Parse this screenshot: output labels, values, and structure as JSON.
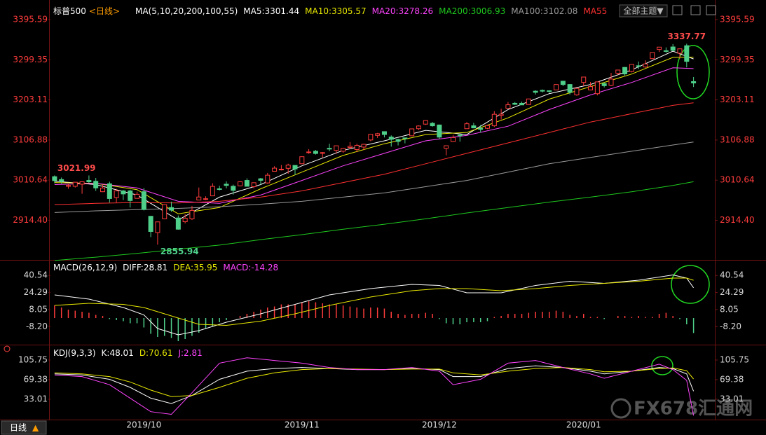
{
  "header": {
    "symbol": "标普500",
    "period": "<日线>",
    "theme_button": "全部主题▼",
    "bottom_tab": "日线",
    "bottom_tab_arrow": "▲",
    "watermark": "FX678汇通网"
  },
  "chart_data": [
    {
      "type": "candlestick",
      "indicator": "MA(5,10,20,200,100,55)",
      "up_color": "#ff3c3c",
      "down_color": "#4fd08a",
      "tick_color": "#ff3c3c",
      "xlim": [
        -0.6,
        96.1
      ],
      "ylim": [
        2821.2,
        3442.6
      ],
      "yticks": [
        3395.59,
        3299.35,
        3203.11,
        3106.88,
        3010.64,
        {
          "value": 2914.4,
          "label": "2914.40"
        }
      ],
      "categories": [
        null,
        null,
        null,
        null,
        null,
        null,
        null,
        null,
        null,
        null,
        null,
        null,
        null,
        "2019/10",
        null,
        null,
        null,
        null,
        null,
        null,
        null,
        null,
        null,
        null,
        null,
        null,
        null,
        null,
        null,
        null,
        null,
        null,
        null,
        null,
        null,
        null,
        "2019/11",
        null,
        null,
        null,
        null,
        null,
        null,
        null,
        null,
        null,
        null,
        null,
        null,
        null,
        null,
        null,
        null,
        null,
        null,
        null,
        "2019/12",
        null,
        null,
        null,
        null,
        null,
        null,
        null,
        null,
        null,
        null,
        null,
        null,
        null,
        null,
        null,
        null,
        null,
        null,
        null,
        null,
        "2020/01",
        null,
        null,
        null,
        null,
        null,
        null,
        null,
        null,
        null,
        null,
        null,
        null,
        null,
        null,
        null,
        null
      ],
      "candles": [
        [
          3019,
          3021.99,
          3003,
          3009.57
        ],
        [
          3012,
          3017,
          3002,
          3007.39
        ],
        [
          2996,
          3002,
          2990,
          2997.96
        ],
        [
          2996,
          3006,
          2993,
          3005.7
        ],
        [
          3001,
          3008,
          2978,
          3006.73
        ],
        [
          3010,
          3022,
          3004,
          3006.79
        ],
        [
          3008,
          3016,
          2985,
          2992.07
        ],
        [
          2983,
          2999,
          2982,
          2991.78
        ],
        [
          3002,
          3007,
          2957,
          2966.6
        ],
        [
          2969,
          2990,
          2957,
          2984.87
        ],
        [
          2985,
          2987,
          2963,
          2977.62
        ],
        [
          2985,
          2988,
          2945,
          2961.79
        ],
        [
          2967,
          2983,
          2967,
          2976.74
        ],
        [
          2983,
          2992,
          2938,
          2940.25
        ],
        [
          2924,
          2925,
          2874,
          2887.61
        ],
        [
          2885,
          2911,
          2855.94,
          2910.63
        ],
        [
          2918,
          2953,
          2918,
          2952.01
        ],
        [
          2945,
          2959,
          2935,
          2938.79
        ],
        [
          2920,
          2926,
          2892,
          2893.06
        ],
        [
          2911,
          2929,
          2907,
          2919.4
        ],
        [
          2918,
          2949,
          2915,
          2938.13
        ],
        [
          2963,
          2993,
          2963,
          2970.27
        ],
        [
          2965,
          2972,
          2963,
          2966.15
        ],
        [
          2973,
          3003,
          2973,
          2995.68
        ],
        [
          2990,
          2997,
          2986,
          2989.69
        ],
        [
          3001,
          3008,
          2991,
          2997.95
        ],
        [
          2996,
          3000,
          2976,
          2986.2
        ],
        [
          2997,
          3008,
          2996,
          3006.72
        ],
        [
          3010,
          3015,
          2995,
          2995.99
        ],
        [
          2995,
          3005,
          2991,
          3004.52
        ],
        [
          3014,
          3016,
          3000,
          3010.29
        ],
        [
          3004,
          3028,
          3002,
          3022.55
        ],
        [
          3032,
          3044,
          3032,
          3039.42
        ],
        [
          3036,
          3047,
          3034,
          3036.89
        ],
        [
          3039,
          3050,
          3026,
          3046.77
        ],
        [
          3046,
          3046,
          3023,
          3037.56
        ],
        [
          3050,
          3066.95,
          3050,
          3066.91
        ],
        [
          3078,
          3085,
          3074,
          3078.27
        ],
        [
          3080,
          3083,
          3072,
          3074.62
        ],
        [
          3075,
          3078,
          3065,
          3076.78
        ],
        [
          3087,
          3098,
          3080,
          3085.18
        ],
        [
          3082,
          3093.09,
          3074,
          3093.08
        ],
        [
          3080,
          3088,
          3076,
          3087.01
        ],
        [
          3089,
          3102,
          3085,
          3091.84
        ],
        [
          3084,
          3098,
          3078,
          3094.04
        ],
        [
          3090,
          3098,
          3083,
          3096.63
        ],
        [
          3107,
          3120.46,
          3104,
          3120.46
        ],
        [
          3118,
          3124,
          3112,
          3122.03
        ],
        [
          3127,
          3127.6,
          3113,
          3120.18
        ],
        [
          3114,
          3118,
          3091,
          3108.46
        ],
        [
          3108,
          3110,
          3094,
          3103.54
        ],
        [
          3112,
          3112,
          3099,
          3110.29
        ],
        [
          3117,
          3133.8,
          3117,
          3133.64
        ],
        [
          3134,
          3142,
          3131,
          3140.52
        ],
        [
          3145,
          3154,
          3143,
          3153.63
        ],
        [
          3147,
          3150,
          3139,
          3140.98
        ],
        [
          3143,
          3144,
          3110,
          3113.87
        ],
        [
          3087,
          3094,
          3070,
          3093.2
        ],
        [
          3103,
          3119,
          3102,
          3112.76
        ],
        [
          3119,
          3120,
          3103,
          3117.43
        ],
        [
          3134,
          3150,
          3134,
          3145.91
        ],
        [
          3141,
          3148,
          3135,
          3135.96
        ],
        [
          3135,
          3143,
          3125,
          3132.52
        ],
        [
          3135,
          3143,
          3133,
          3141.63
        ],
        [
          3141,
          3176,
          3138,
          3168.57
        ],
        [
          3166,
          3182,
          3156,
          3168.8
        ],
        [
          3183,
          3198,
          3183,
          3191.45
        ],
        [
          3195,
          3198,
          3191,
          3192.52
        ],
        [
          3195,
          3199,
          3191,
          3191.14
        ],
        [
          3192,
          3206,
          3192,
          3205.37
        ],
        [
          3224,
          3226,
          3216,
          3221.22
        ],
        [
          3226,
          3228,
          3221,
          3224.01
        ],
        [
          3225,
          3226,
          3220,
          3223.38
        ],
        [
          3227,
          3240,
          3227,
          3239.91
        ],
        [
          3248,
          3248,
          3236,
          3240.02
        ],
        [
          3240,
          3241,
          3216,
          3221.29
        ],
        [
          3215,
          3231,
          3213,
          3230.78
        ],
        [
          3245,
          3258,
          3236,
          3257.85
        ],
        [
          3227,
          3246,
          3226,
          3234.85
        ],
        [
          3218,
          3247,
          3214,
          3246.28
        ],
        [
          3242,
          3245,
          3233,
          3237.18
        ],
        [
          3238,
          3268,
          3236,
          3253.05
        ],
        [
          3267,
          3275,
          3263,
          3274.7
        ],
        [
          3281,
          3282,
          3261,
          3265.35
        ],
        [
          3271,
          3288,
          3269,
          3288.13
        ],
        [
          3285,
          3295,
          3277,
          3283.15
        ],
        [
          3282,
          3298,
          3280,
          3289.29
        ],
        [
          3302,
          3317,
          3302,
          3316.81
        ],
        [
          3324,
          3329.9,
          3318,
          3329.62
        ],
        [
          3321,
          3329,
          3316,
          3320.79
        ],
        [
          3330,
          3337,
          3320,
          3321.75
        ],
        [
          3315,
          3326,
          3302,
          3325.54
        ],
        [
          3333,
          3337.77,
          3281,
          3295.47
        ],
        [
          3247,
          3258,
          3234,
          3243.63
        ]
      ],
      "x": [
        0,
        6,
        12,
        18,
        24,
        30,
        36,
        42,
        48,
        54,
        60,
        66,
        72,
        78,
        84,
        90,
        93
      ],
      "series": [
        {
          "name": "MA5:3301.44",
          "color": "#ffffff",
          "values": [
            3008,
            3000,
            2975,
            2915,
            2970,
            3000,
            3045,
            3082,
            3105,
            3130,
            3120,
            3180,
            3218,
            3240,
            3275,
            3320,
            3301.44
          ]
        },
        {
          "name": "MA10:3305.57",
          "color": "#e8e800",
          "values": [
            3005,
            3003,
            2988,
            2930,
            2945,
            2990,
            3030,
            3070,
            3098,
            3120,
            3125,
            3160,
            3205,
            3235,
            3265,
            3305,
            3305.57
          ]
        },
        {
          "name": "MA20:3278.26",
          "color": "#ff44ff",
          "values": [
            3000,
            3003,
            2992,
            2960,
            2955,
            2975,
            3010,
            3045,
            3075,
            3105,
            3118,
            3140,
            3180,
            3215,
            3245,
            3280,
            3278.26
          ]
        },
        {
          "name": "MA200:3006.93",
          "color": "#1ec81e",
          "values": [
            2818,
            2826,
            2835,
            2845,
            2855,
            2868,
            2880,
            2893,
            2905,
            2918,
            2932,
            2945,
            2958,
            2970,
            2983,
            2998,
            3006.93
          ]
        },
        {
          "name": "MA100:3102.08",
          "color": "#9a9a9a",
          "values": [
            2933,
            2937,
            2940,
            2943,
            2947,
            2953,
            2960,
            2970,
            2980,
            2995,
            3010,
            3030,
            3050,
            3065,
            3080,
            3095,
            3102.08
          ]
        },
        {
          "name": "MA55",
          "color": "#ff3030",
          "values": [
            2952,
            2955,
            2957,
            2956,
            2960,
            2970,
            2985,
            3005,
            3025,
            3050,
            3075,
            3100,
            3125,
            3150,
            3170,
            3190,
            3196
          ]
        }
      ],
      "annotations": [
        {
          "x": 92,
          "value": 3337.77,
          "label": "3337.77",
          "color": "#ff4c4c",
          "anchor": "middle",
          "position": "above"
        },
        {
          "x": 0,
          "value": 3021.99,
          "label": "3021.99",
          "color": "#ff4c4c",
          "anchor": "start",
          "position": "above"
        },
        {
          "x": 15,
          "value": 2855.94,
          "label": "2855.94",
          "color": "#4fd08a",
          "anchor": "start",
          "position": "below"
        }
      ]
    },
    {
      "type": "macd",
      "indicator": "MACD(26,12,9)",
      "tick_color": "#d6d6d6",
      "up_color": "#ff3c3c",
      "down_color": "#4fd08a",
      "xlim": [
        -0.6,
        96.1
      ],
      "ylim": [
        -24,
        54.7
      ],
      "yticks": [
        40.54,
        24.29,
        8.05,
        {
          "value": -8.2,
          "label": "-8.20"
        }
      ],
      "histogram_name": "MACD:-14.28",
      "histogram_name_color": "#ff44ff",
      "histogram": [
        12,
        10,
        8,
        7,
        6,
        5,
        3,
        2,
        -1,
        -2,
        -3,
        -5,
        -5,
        -9,
        -15,
        -18,
        -17,
        -19,
        -22,
        -20,
        -17,
        -14,
        -10,
        -8,
        -4,
        -2,
        0,
        2,
        4,
        6,
        8,
        10,
        11,
        13,
        13,
        13,
        15,
        16,
        15,
        14,
        13,
        13,
        12,
        11,
        10,
        9,
        10,
        10,
        9,
        6,
        4,
        3,
        4,
        4,
        5,
        4,
        -1,
        -5,
        -6,
        -6,
        -4,
        -4,
        -4,
        -3,
        1,
        2,
        4,
        4,
        4,
        5,
        6,
        6,
        6,
        7,
        6,
        3,
        2,
        4,
        1,
        1,
        -1,
        0,
        2,
        2,
        1,
        2,
        1,
        1,
        4,
        5,
        2,
        -1,
        -6,
        -14.28
      ],
      "x": [
        0,
        5,
        10,
        13,
        15,
        18,
        21,
        25,
        30,
        35,
        40,
        46,
        52,
        56,
        60,
        65,
        70,
        75,
        80,
        85,
        90,
        92,
        93
      ],
      "series": [
        {
          "name": "DIFF:28.81",
          "color": "#ffffff",
          "values": [
            22,
            18,
            10,
            3,
            -10,
            -16,
            -12,
            -4,
            4,
            13,
            22,
            28,
            32,
            31,
            24,
            24,
            31,
            35,
            33,
            36,
            41,
            38,
            28.81
          ]
        },
        {
          "name": "DEA:35.95",
          "color": "#e8e800",
          "values": [
            12,
            14,
            13,
            10,
            6,
            0,
            -6,
            -7,
            -3,
            4,
            12,
            20,
            26,
            28,
            28,
            26,
            28,
            31,
            33,
            35,
            38,
            38,
            35.95
          ]
        }
      ]
    },
    {
      "type": "line",
      "indicator": "KDJ(9,3,3)",
      "tick_color": "#d6d6d6",
      "xlim": [
        -0.6,
        96.1
      ],
      "ylim": [
        -3.4,
        131.7
      ],
      "yticks": [
        105.75,
        69.38,
        33.01
      ],
      "x": [
        0,
        4,
        8,
        11,
        14,
        17,
        20,
        24,
        28,
        32,
        36,
        40,
        44,
        48,
        52,
        56,
        58,
        62,
        66,
        70,
        74,
        78,
        80,
        84,
        88,
        90,
        92,
        93
      ],
      "series": [
        {
          "name": "K:48.01",
          "color": "#ffffff",
          "values": [
            80,
            78,
            70,
            55,
            35,
            25,
            40,
            70,
            85,
            90,
            92,
            90,
            88,
            88,
            90,
            88,
            75,
            75,
            90,
            95,
            92,
            85,
            80,
            85,
            92,
            90,
            80,
            48.01
          ]
        },
        {
          "name": "D:70.61",
          "color": "#e8e800",
          "values": [
            82,
            80,
            75,
            65,
            50,
            38,
            40,
            55,
            72,
            82,
            88,
            90,
            89,
            88,
            89,
            89,
            82,
            78,
            85,
            90,
            92,
            88,
            84,
            85,
            90,
            91,
            86,
            70.61
          ]
        },
        {
          "name": "J:2.81",
          "color": "#ff44ff",
          "values": [
            78,
            75,
            60,
            35,
            10,
            5,
            45,
            100,
            110,
            105,
            100,
            92,
            88,
            88,
            92,
            85,
            60,
            70,
            100,
            105,
            92,
            80,
            72,
            85,
            98,
            88,
            68,
            2.81
          ]
        }
      ]
    }
  ]
}
